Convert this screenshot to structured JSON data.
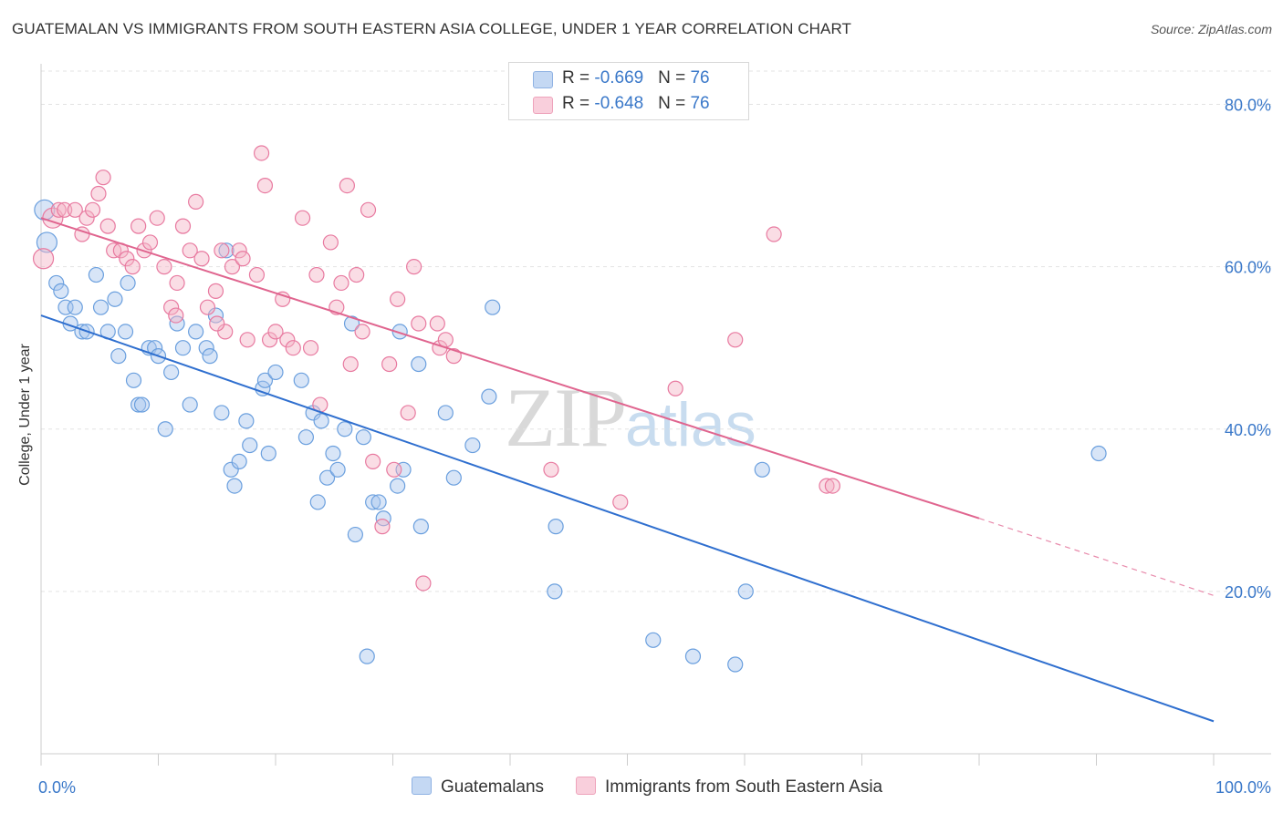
{
  "title": "GUATEMALAN VS IMMIGRANTS FROM SOUTH EASTERN ASIA COLLEGE, UNDER 1 YEAR CORRELATION CHART",
  "source": "Source: ZipAtlas.com",
  "watermark": {
    "zip": "ZIP",
    "atlas": "atlas"
  },
  "legend": {
    "rows": [
      {
        "r_label": "R = ",
        "r_value": "-0.669",
        "n_label": "N = ",
        "n_value": "76",
        "color": "#a9c6ed"
      },
      {
        "r_label": "R = ",
        "r_value": "-0.648",
        "n_label": "N = ",
        "n_value": "76",
        "color": "#f5b3c6"
      }
    ]
  },
  "chart_data": {
    "type": "scatter",
    "title": "GUATEMALAN VS IMMIGRANTS FROM SOUTH EASTERN ASIA COLLEGE, UNDER 1 YEAR CORRELATION CHART",
    "xlabel": "",
    "ylabel": "College, Under 1 year",
    "xlim": [
      0,
      100
    ],
    "ylim": [
      0,
      85
    ],
    "x_tick_labels": [
      "0.0%",
      "100.0%"
    ],
    "y_ticks": [
      20,
      40,
      60,
      80
    ],
    "y_tick_labels": [
      "20.0%",
      "40.0%",
      "60.0%",
      "80.0%"
    ],
    "grid": true,
    "legend_position": "top-center",
    "series": [
      {
        "name": "Guatemalans",
        "color": "#6a9fde",
        "fill": "#a9c6ed",
        "trend": {
          "x0": 0,
          "y0": 54,
          "x1": 100,
          "y1": 4
        },
        "points": [
          [
            0.3,
            67
          ],
          [
            0.5,
            63
          ],
          [
            1.3,
            58
          ],
          [
            1.7,
            57
          ],
          [
            2.1,
            55
          ],
          [
            2.9,
            55
          ],
          [
            2.5,
            53
          ],
          [
            3.5,
            52
          ],
          [
            3.9,
            52
          ],
          [
            4.7,
            59
          ],
          [
            5.1,
            55
          ],
          [
            5.7,
            52
          ],
          [
            6.3,
            56
          ],
          [
            6.6,
            49
          ],
          [
            7.2,
            52
          ],
          [
            7.4,
            58
          ],
          [
            7.9,
            46
          ],
          [
            8.3,
            43
          ],
          [
            8.6,
            43
          ],
          [
            9.2,
            50
          ],
          [
            9.7,
            50
          ],
          [
            10,
            49
          ],
          [
            10.6,
            40
          ],
          [
            11.1,
            47
          ],
          [
            11.6,
            53
          ],
          [
            12.1,
            50
          ],
          [
            12.7,
            43
          ],
          [
            13.2,
            52
          ],
          [
            14.1,
            50
          ],
          [
            14.4,
            49
          ],
          [
            14.9,
            54
          ],
          [
            15.4,
            42
          ],
          [
            15.8,
            62
          ],
          [
            16.2,
            35
          ],
          [
            16.5,
            33
          ],
          [
            16.9,
            36
          ],
          [
            17.5,
            41
          ],
          [
            17.8,
            38
          ],
          [
            18.9,
            45
          ],
          [
            19.4,
            37
          ],
          [
            19.1,
            46
          ],
          [
            20,
            47
          ],
          [
            22.2,
            46
          ],
          [
            22.6,
            39
          ],
          [
            23.2,
            42
          ],
          [
            23.6,
            31
          ],
          [
            23.9,
            41
          ],
          [
            24.4,
            34
          ],
          [
            24.9,
            37
          ],
          [
            25.3,
            35
          ],
          [
            25.9,
            40
          ],
          [
            26.5,
            53
          ],
          [
            26.8,
            27
          ],
          [
            27.5,
            39
          ],
          [
            28.3,
            31
          ],
          [
            28.8,
            31
          ],
          [
            29.2,
            29
          ],
          [
            30.4,
            33
          ],
          [
            30.9,
            35
          ],
          [
            30.6,
            52
          ],
          [
            32.2,
            48
          ],
          [
            32.4,
            28
          ],
          [
            34.5,
            42
          ],
          [
            35.2,
            34
          ],
          [
            36.8,
            38
          ],
          [
            38.2,
            44
          ],
          [
            38.5,
            55
          ],
          [
            43.9,
            28
          ],
          [
            43.8,
            20
          ],
          [
            52.2,
            14
          ],
          [
            55.6,
            12
          ],
          [
            59.2,
            11
          ],
          [
            60.1,
            20
          ],
          [
            61.5,
            35
          ],
          [
            90.2,
            37
          ],
          [
            27.8,
            12
          ]
        ]
      },
      {
        "name": "Immigrants from South Eastern Asia",
        "color": "#e87aa0",
        "fill": "#f5b3c6",
        "trend": {
          "x0": 0,
          "y0": 66,
          "x1": 80,
          "y1": 29
        },
        "trend_dashed": {
          "x0": 80,
          "y0": 29,
          "x1": 100,
          "y1": 19.5
        },
        "points": [
          [
            0.2,
            61
          ],
          [
            1,
            66
          ],
          [
            1.5,
            67
          ],
          [
            2,
            67
          ],
          [
            2.9,
            67
          ],
          [
            3.5,
            64
          ],
          [
            3.9,
            66
          ],
          [
            4.4,
            67
          ],
          [
            4.9,
            69
          ],
          [
            5.3,
            71
          ],
          [
            5.7,
            65
          ],
          [
            6.2,
            62
          ],
          [
            6.8,
            62
          ],
          [
            7.3,
            61
          ],
          [
            7.8,
            60
          ],
          [
            8.3,
            65
          ],
          [
            8.8,
            62
          ],
          [
            9.3,
            63
          ],
          [
            9.9,
            66
          ],
          [
            10.5,
            60
          ],
          [
            11.1,
            55
          ],
          [
            11.6,
            58
          ],
          [
            12.1,
            65
          ],
          [
            12.7,
            62
          ],
          [
            13.2,
            68
          ],
          [
            13.7,
            61
          ],
          [
            14.2,
            55
          ],
          [
            14.9,
            57
          ],
          [
            15.4,
            62
          ],
          [
            15.7,
            52
          ],
          [
            16.3,
            60
          ],
          [
            16.9,
            62
          ],
          [
            17.2,
            61
          ],
          [
            17.6,
            51
          ],
          [
            18.4,
            59
          ],
          [
            18.8,
            74
          ],
          [
            19.1,
            70
          ],
          [
            19.5,
            51
          ],
          [
            20,
            52
          ],
          [
            20.6,
            56
          ],
          [
            21,
            51
          ],
          [
            21.5,
            50
          ],
          [
            22.3,
            66
          ],
          [
            23,
            50
          ],
          [
            23.5,
            59
          ],
          [
            23.8,
            43
          ],
          [
            24.7,
            63
          ],
          [
            25.2,
            55
          ],
          [
            25.6,
            58
          ],
          [
            26.1,
            70
          ],
          [
            26.4,
            48
          ],
          [
            26.9,
            59
          ],
          [
            27.4,
            52
          ],
          [
            27.9,
            67
          ],
          [
            28.3,
            36
          ],
          [
            29.1,
            28
          ],
          [
            29.7,
            48
          ],
          [
            30.1,
            35
          ],
          [
            30.4,
            56
          ],
          [
            31.3,
            42
          ],
          [
            31.8,
            60
          ],
          [
            32.2,
            53
          ],
          [
            32.6,
            21
          ],
          [
            33.8,
            53
          ],
          [
            34,
            50
          ],
          [
            34.5,
            51
          ],
          [
            35.2,
            49
          ],
          [
            43.5,
            35
          ],
          [
            49.4,
            31
          ],
          [
            54.1,
            45
          ],
          [
            59.2,
            51
          ],
          [
            62.5,
            64
          ],
          [
            67,
            33
          ],
          [
            67.5,
            33
          ],
          [
            11.5,
            54
          ],
          [
            15,
            53
          ]
        ]
      }
    ]
  }
}
